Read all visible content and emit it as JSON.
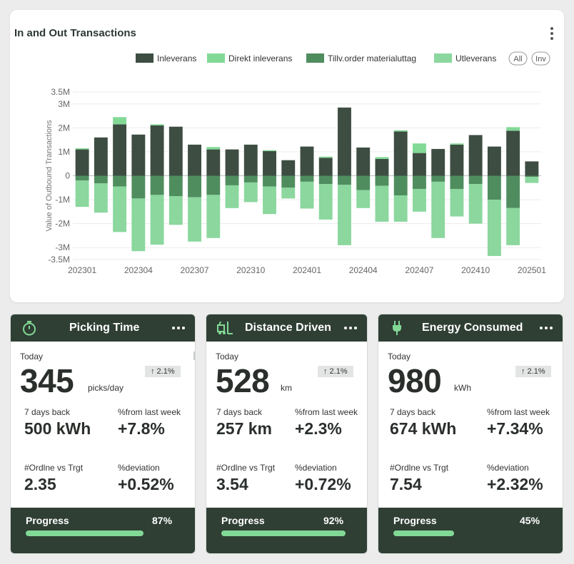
{
  "chart_card": {
    "title": "In and Out Transactions"
  },
  "chart_data": {
    "type": "bar",
    "stacked": true,
    "title": "In and Out Transactions",
    "ylabel": "Value of Outbound Transactions",
    "xlabel": "",
    "ylim": [
      -3.5,
      3.5
    ],
    "y_unit": "M",
    "yticks": [
      "3.5M",
      "3M",
      "2M",
      "1M",
      "0",
      "-1M",
      "-2M",
      "-3M",
      "-3.5M"
    ],
    "ytick_values": [
      3.5,
      3,
      2,
      1,
      0,
      -1,
      -2,
      -3,
      -3.5
    ],
    "categories": [
      "202301",
      "202302",
      "202303",
      "202304",
      "202305",
      "202306",
      "202307",
      "202308",
      "202309",
      "202310",
      "202311",
      "202312",
      "202401",
      "202402",
      "202403",
      "202404",
      "202405",
      "202406",
      "202407",
      "202408",
      "202409",
      "202410",
      "202411",
      "202412",
      "202501"
    ],
    "x_tick_labels": [
      "202301",
      "202304",
      "202307",
      "202310",
      "202401",
      "202404",
      "202407",
      "202410",
      "202501"
    ],
    "series": [
      {
        "name": "Inleverans",
        "color": "#3d4d42",
        "values": [
          1.1,
          1.6,
          2.15,
          1.72,
          2.1,
          2.05,
          1.3,
          1.1,
          1.1,
          1.3,
          1.03,
          0.65,
          1.22,
          0.75,
          2.85,
          1.18,
          0.7,
          1.85,
          0.95,
          1.12,
          1.3,
          1.7,
          1.22,
          1.88,
          0.6
        ]
      },
      {
        "name": "Direkt inleverans",
        "color": "#82d996",
        "values": [
          0.05,
          0,
          0.3,
          0,
          0.05,
          0,
          0,
          0.1,
          0,
          0,
          0.04,
          0,
          0,
          0.05,
          0,
          0,
          0.08,
          0.05,
          0.4,
          0,
          0.05,
          0,
          0,
          0.15,
          0
        ]
      },
      {
        "name": "Tillv.order materialuttag",
        "color": "#4f8d5f",
        "values": [
          -0.2,
          -0.32,
          -0.45,
          -0.95,
          -0.8,
          -0.85,
          -0.9,
          -0.8,
          -0.4,
          -0.28,
          -0.45,
          -0.5,
          -0.25,
          -0.35,
          -0.38,
          -0.6,
          -0.42,
          -0.82,
          -0.55,
          -0.25,
          -0.55,
          -0.35,
          -1.0,
          -1.35,
          -0.05
        ]
      },
      {
        "name": "Utleverans",
        "color": "#8bd79e",
        "values": [
          -1.1,
          -1.22,
          -1.9,
          -2.2,
          -2.08,
          -1.2,
          -1.85,
          -1.8,
          -0.95,
          -0.82,
          -1.15,
          -0.45,
          -1.12,
          -1.48,
          -2.52,
          -0.75,
          -1.5,
          -1.1,
          -0.95,
          -2.35,
          -1.15,
          -1.65,
          -2.35,
          -1.55,
          -0.25
        ]
      }
    ],
    "legend_position": "top-right",
    "legend_toggles": [
      "All",
      "Inv"
    ],
    "grid": true
  },
  "kpis": [
    {
      "title": "Picking Time",
      "icon": "stopwatch-icon",
      "today_label": "Today",
      "value": "345",
      "unit": "picks/day",
      "trend": "↑ 2.1%",
      "stat1_label": "7 days back",
      "stat1_value": "500 kWh",
      "stat2_label": "%from last week",
      "stat2_value": "+7.8%",
      "stat3_label": "#Ordlne vs Trgt",
      "stat3_value": "2.35",
      "stat4_label": "%deviation",
      "stat4_value": "+0.52%",
      "progress_label": "Progress",
      "progress_text": "87%",
      "progress_value": 0.87
    },
    {
      "title": "Distance Driven",
      "icon": "forklift-icon",
      "today_label": "Today",
      "value": "528",
      "unit": "km",
      "trend": "↑ 2.1%",
      "stat1_label": "7 days back",
      "stat1_value": "257 km",
      "stat2_label": "%from last week",
      "stat2_value": "+2.3%",
      "stat3_label": "#Ordlne vs Trgt",
      "stat3_value": "3.54",
      "stat4_label": "%deviation",
      "stat4_value": "+0.72%",
      "progress_label": "Progress",
      "progress_text": "92%",
      "progress_value": 0.92
    },
    {
      "title": "Energy Consumed",
      "icon": "plug-icon",
      "today_label": "Today",
      "value": "980",
      "unit": "kWh",
      "trend": "↑ 2.1%",
      "stat1_label": "7 days back",
      "stat1_value": "674 kWh",
      "stat2_label": "%from last week",
      "stat2_value": "+7.34%",
      "stat3_label": "#Ordlne vs Trgt",
      "stat3_value": "7.54",
      "stat4_label": "%deviation",
      "stat4_value": "+2.32%",
      "progress_label": "Progress",
      "progress_text": "45%",
      "progress_value": 0.45
    }
  ],
  "colors": {
    "card_header": "#2f3f34",
    "accent_green": "#82d996",
    "dark_green": "#3d4d42"
  }
}
